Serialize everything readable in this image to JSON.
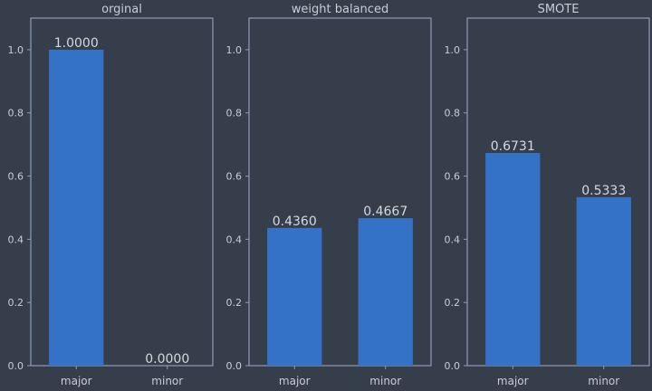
{
  "chart_data": [
    {
      "type": "bar",
      "title": "orginal",
      "categories": [
        "major",
        "minor"
      ],
      "values": [
        1.0,
        0.0
      ],
      "value_labels": [
        "1.0000",
        "0.0000"
      ],
      "ylim": [
        0,
        1.1
      ],
      "yticks": [
        "0.0",
        "0.2",
        "0.4",
        "0.6",
        "0.8",
        "1.0"
      ],
      "bar_color": "#3472c8",
      "grid": false
    },
    {
      "type": "bar",
      "title": "weight balanced",
      "categories": [
        "major",
        "minor"
      ],
      "values": [
        0.436,
        0.4667
      ],
      "value_labels": [
        "0.4360",
        "0.4667"
      ],
      "ylim": [
        0,
        1.1
      ],
      "yticks": [
        "0.0",
        "0.2",
        "0.4",
        "0.6",
        "0.8",
        "1.0"
      ],
      "bar_color": "#3472c8",
      "grid": false
    },
    {
      "type": "bar",
      "title": "SMOTE",
      "categories": [
        "major",
        "minor"
      ],
      "values": [
        0.6731,
        0.5333
      ],
      "value_labels": [
        "0.6731",
        "0.5333"
      ],
      "ylim": [
        0,
        1.1
      ],
      "yticks": [
        "0.0",
        "0.2",
        "0.4",
        "0.6",
        "0.8",
        "1.0"
      ],
      "bar_color": "#3472c8",
      "grid": false
    }
  ],
  "theme": {
    "background": "#373e4b",
    "axis_color": "#8e9db3",
    "text_color": "#c8cdd6"
  }
}
